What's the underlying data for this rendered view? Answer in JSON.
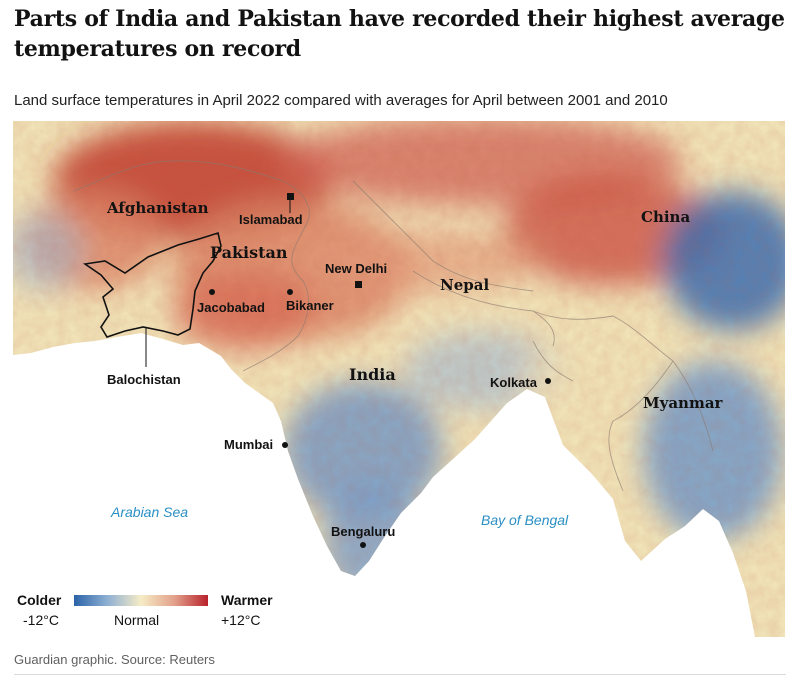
{
  "title": "Parts of India and Pakistan have recorded their highest average temperatures on record",
  "subtitle": "Land surface temperatures in April 2022 compared with averages for April between 2001 and 2010",
  "countries": {
    "afghanistan": "Afghanistan",
    "pakistan": "Pakistan",
    "india": "India",
    "nepal": "Nepal",
    "china": "China",
    "myanmar": "Myanmar"
  },
  "regions": {
    "balochistan": "Balochistan"
  },
  "cities": {
    "islamabad": "Islamabad",
    "new_delhi": "New Delhi",
    "jacobabad": "Jacobabad",
    "bikaner": "Bikaner",
    "kolkata": "Kolkata",
    "mumbai": "Mumbai",
    "bengaluru": "Bengaluru"
  },
  "seas": {
    "arabian_sea": "Arabian Sea",
    "bay_of_bengal": "Bay of Bengal"
  },
  "legend": {
    "colder_label": "Colder",
    "warmer_label": "Warmer",
    "min_value": "-12°C",
    "mid_value": "Normal",
    "max_value": "+12°C",
    "cold_color": "#2b63a8",
    "normal_color": "#f6ecc6",
    "warm_color": "#b8222c"
  },
  "colors": {
    "sea": "#ffffff",
    "land_normal": "#f1e3b8",
    "land_warm": "#dc8566",
    "land_hot": "#c0392b",
    "land_cool": "#7a9ec8",
    "land_cold": "#3c6fb0",
    "label_sea": "#2a8fc4"
  },
  "footer": "Guardian graphic. Source: Reuters"
}
